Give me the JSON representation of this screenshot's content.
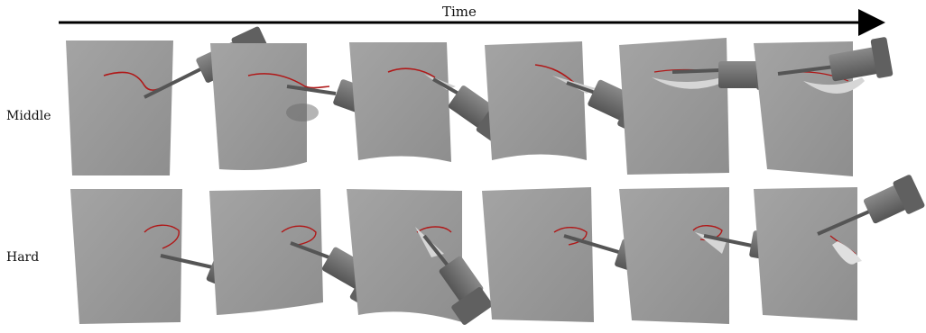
{
  "time_axis": {
    "label": "Time"
  },
  "rows": [
    {
      "label": "Middle",
      "frames": 6
    },
    {
      "label": "Hard",
      "frames": 6
    }
  ],
  "colors": {
    "sheet": "#9c9c9c",
    "sheet_shade": "#8a8a8a",
    "cut_line": "#b01818",
    "gripper": "#6f6f6f",
    "gripper_dark": "#4a4a4a",
    "arrow": "#000000"
  }
}
